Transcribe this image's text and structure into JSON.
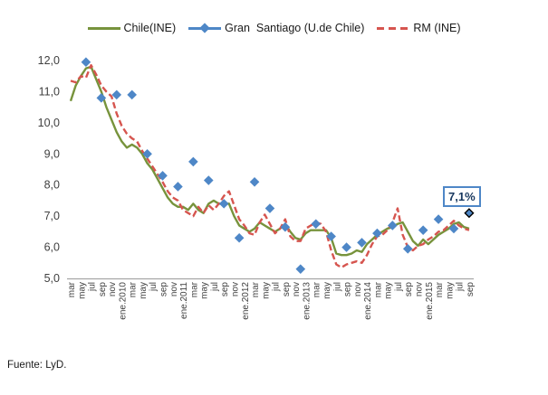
{
  "legend": {
    "items": [
      {
        "label": "Chile(INE)",
        "color": "#77933C",
        "style": "line"
      },
      {
        "label": "Gran  Santiago (U.de Chile)",
        "color": "#4E87C7",
        "style": "line-diamond"
      },
      {
        "label": "RM (INE)",
        "color": "#D6554F",
        "style": "dashed"
      }
    ]
  },
  "annotation": {
    "text": "7,1%"
  },
  "source": "Fuente: LyD.",
  "colors": {
    "chile_line": "#77933C",
    "gran_santiago_marker": "#4E87C7",
    "rm_line": "#D6554F",
    "axis_line": "#A6A6A6",
    "tick_text": "#404040",
    "annotation_border": "#4E87C7",
    "annotation_text": "#17375E"
  },
  "chart_data": {
    "type": "line",
    "title": "",
    "ylabel": "",
    "xlabel": "",
    "ylim": [
      5,
      12
    ],
    "grid": false,
    "legend_position": "top",
    "y_tick_labels": [
      "12,0",
      "11,0",
      "10,0",
      "9,0",
      "8,0",
      "7,0",
      "6,0",
      "5,0"
    ],
    "months_count": 79,
    "x_start": "mar.2009",
    "x_end": "sep.2015",
    "x_label_step": 2,
    "x_tick_labels": [
      "mar",
      "may",
      "jul",
      "sep",
      "nov",
      "ene.2010",
      "mar",
      "may",
      "jul",
      "sep",
      "nov",
      "ene.2011",
      "mar",
      "may",
      "jul",
      "sep",
      "nov",
      "ene.2012",
      "mar",
      "may",
      "jul",
      "sep",
      "nov",
      "ene.2013",
      "mar",
      "may",
      "jul",
      "sep",
      "nov",
      "ene.2014",
      "mar",
      "may",
      "jul",
      "sep",
      "nov",
      "ene.2015",
      "mar",
      "may",
      "jul",
      "sep"
    ],
    "series": [
      {
        "name": "Chile(INE)",
        "type": "line",
        "dashed": false,
        "color": "#77933C",
        "values": [
          10.7,
          11.2,
          11.5,
          11.75,
          11.8,
          11.4,
          11.0,
          10.5,
          10.1,
          9.7,
          9.4,
          9.2,
          9.3,
          9.2,
          9.0,
          8.7,
          8.5,
          8.2,
          7.9,
          7.6,
          7.4,
          7.3,
          7.3,
          7.2,
          7.4,
          7.2,
          7.1,
          7.4,
          7.5,
          7.4,
          7.4,
          7.4,
          7.0,
          6.7,
          6.6,
          6.5,
          6.6,
          6.8,
          6.7,
          6.6,
          6.5,
          6.6,
          6.75,
          6.5,
          6.3,
          6.25,
          6.45,
          6.55,
          6.55,
          6.55,
          6.55,
          6.3,
          5.8,
          5.75,
          5.75,
          5.8,
          5.9,
          5.85,
          6.1,
          6.25,
          6.4,
          6.5,
          6.6,
          6.65,
          6.75,
          6.8,
          6.5,
          6.2,
          6.05,
          6.25,
          6.1,
          6.25,
          6.4,
          6.5,
          6.6,
          6.75,
          6.8,
          6.65,
          6.6
        ]
      },
      {
        "name": "Gran  Santiago (U.de Chile)",
        "type": "scatter",
        "marker": "diamond",
        "color": "#4E87C7",
        "points": [
          {
            "x": 3,
            "value": 11.95
          },
          {
            "x": 6,
            "value": 10.8
          },
          {
            "x": 9,
            "value": 10.9
          },
          {
            "x": 12,
            "value": 10.9
          },
          {
            "x": 15,
            "value": 9.0
          },
          {
            "x": 18,
            "value": 8.3
          },
          {
            "x": 21,
            "value": 7.95
          },
          {
            "x": 24,
            "value": 8.75
          },
          {
            "x": 27,
            "value": 8.15
          },
          {
            "x": 30,
            "value": 7.4
          },
          {
            "x": 33,
            "value": 6.3
          },
          {
            "x": 36,
            "value": 8.1
          },
          {
            "x": 39,
            "value": 7.25
          },
          {
            "x": 42,
            "value": 6.65
          },
          {
            "x": 45,
            "value": 5.3
          },
          {
            "x": 48,
            "value": 6.75
          },
          {
            "x": 51,
            "value": 6.35
          },
          {
            "x": 54,
            "value": 6.0
          },
          {
            "x": 57,
            "value": 6.15
          },
          {
            "x": 60,
            "value": 6.45
          },
          {
            "x": 63,
            "value": 6.7
          },
          {
            "x": 66,
            "value": 5.95
          },
          {
            "x": 69,
            "value": 6.55
          },
          {
            "x": 72,
            "value": 6.9
          },
          {
            "x": 75,
            "value": 6.6
          },
          {
            "x": 78,
            "value": 7.1
          }
        ]
      },
      {
        "name": "RM (INE)",
        "type": "line",
        "dashed": true,
        "color": "#D6554F",
        "values": [
          11.35,
          11.3,
          11.5,
          11.45,
          11.85,
          11.55,
          11.2,
          11.0,
          10.85,
          10.3,
          9.9,
          9.65,
          9.5,
          9.4,
          9.1,
          8.85,
          8.6,
          8.35,
          8.1,
          7.8,
          7.6,
          7.5,
          7.2,
          7.1,
          7.0,
          7.3,
          7.1,
          7.35,
          7.2,
          7.4,
          7.65,
          7.8,
          7.35,
          6.9,
          6.7,
          6.45,
          6.4,
          6.8,
          7.05,
          6.75,
          6.45,
          6.6,
          6.9,
          6.35,
          6.2,
          6.2,
          6.6,
          6.7,
          6.8,
          6.75,
          6.5,
          5.9,
          5.45,
          5.35,
          5.45,
          5.5,
          5.55,
          5.5,
          5.75,
          6.1,
          6.35,
          6.4,
          6.55,
          6.8,
          7.25,
          6.4,
          6.0,
          5.9,
          6.05,
          6.1,
          6.25,
          6.35,
          6.5,
          6.55,
          6.7,
          6.85,
          6.7,
          6.6,
          6.55
        ]
      }
    ],
    "annotation": {
      "text": "7,1%",
      "series": "Gran  Santiago (U.de Chile)",
      "x_index": 78,
      "value": 7.1
    }
  }
}
